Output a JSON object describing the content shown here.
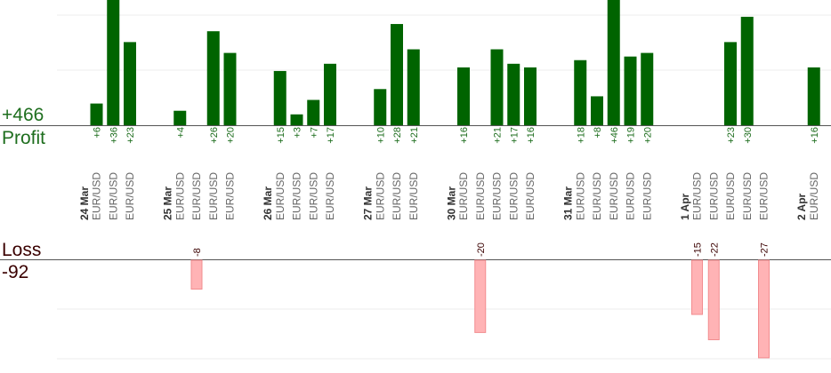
{
  "profit_total": "+466",
  "profit_label": "Profit",
  "loss_label": "Loss",
  "loss_total": "-92",
  "colors": {
    "profit_bar": "#006400",
    "profit_text": "#1e6e1e",
    "loss_bar": "#ffb3b5",
    "loss_text": "#3a0000",
    "axis_text": "#666666",
    "date_text": "#333333"
  },
  "chart_data": {
    "type": "bar",
    "title": "",
    "xlabel": "",
    "ylabel": "",
    "grid": true,
    "days": [
      {
        "date": "24 Mar",
        "trades": [
          {
            "symbol": "EUR/USD",
            "result": 6
          },
          {
            "symbol": "EUR/USD",
            "result": 36
          },
          {
            "symbol": "EUR/USD",
            "result": 23
          }
        ]
      },
      {
        "date": "25 Mar",
        "trades": [
          {
            "symbol": "EUR/USD",
            "result": 4
          },
          {
            "symbol": "EUR/USD",
            "result": -8
          },
          {
            "symbol": "EUR/USD",
            "result": 26
          },
          {
            "symbol": "EUR/USD",
            "result": 20
          }
        ]
      },
      {
        "date": "26 Mar",
        "trades": [
          {
            "symbol": "EUR/USD",
            "result": 15
          },
          {
            "symbol": "EUR/USD",
            "result": 3
          },
          {
            "symbol": "EUR/USD",
            "result": 7
          },
          {
            "symbol": "EUR/USD",
            "result": 17
          }
        ]
      },
      {
        "date": "27 Mar",
        "trades": [
          {
            "symbol": "EUR/USD",
            "result": 10
          },
          {
            "symbol": "EUR/USD",
            "result": 28
          },
          {
            "symbol": "EUR/USD",
            "result": 21
          }
        ]
      },
      {
        "date": "30 Mar",
        "trades": [
          {
            "symbol": "EUR/USD",
            "result": 16
          },
          {
            "symbol": "EUR/USD",
            "result": -20
          },
          {
            "symbol": "EUR/USD",
            "result": 21
          },
          {
            "symbol": "EUR/USD",
            "result": 17
          },
          {
            "symbol": "EUR/USD",
            "result": 16
          }
        ]
      },
      {
        "date": "31 Mar",
        "trades": [
          {
            "symbol": "EUR/USD",
            "result": 18
          },
          {
            "symbol": "EUR/USD",
            "result": 8
          },
          {
            "symbol": "EUR/USD",
            "result": 46
          },
          {
            "symbol": "EUR/USD",
            "result": 19
          },
          {
            "symbol": "EUR/USD",
            "result": 20
          }
        ]
      },
      {
        "date": "1 Apr",
        "trades": [
          {
            "symbol": "EUR/USD",
            "result": -15
          },
          {
            "symbol": "EUR/USD",
            "result": -22
          },
          {
            "symbol": "EUR/USD",
            "result": 23
          },
          {
            "symbol": "EUR/USD",
            "result": 30
          },
          {
            "symbol": "EUR/USD",
            "result": -27
          }
        ]
      },
      {
        "date": "2 Apr",
        "trades": [
          {
            "symbol": "EUR/USD",
            "result": 16
          }
        ]
      }
    ]
  }
}
